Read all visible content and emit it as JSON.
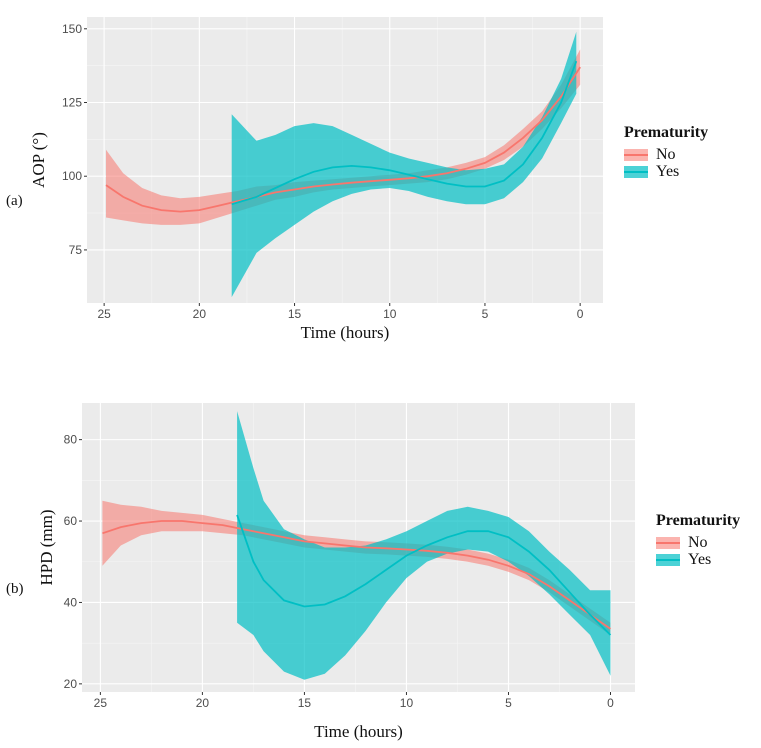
{
  "chart_data": [
    {
      "type": "line",
      "panel_label": "(a)",
      "title": "",
      "xlabel": "Time (hours)",
      "ylabel": "AOP (°)",
      "xlim": [
        25.9,
        -1.2
      ],
      "ylim": [
        57,
        154
      ],
      "x_ticks": [
        25,
        20,
        15,
        10,
        5,
        0
      ],
      "y_ticks": [
        75,
        100,
        125,
        150
      ],
      "grid": true,
      "legend": {
        "title": "Prematurity",
        "entries": [
          "No",
          "Yes"
        ],
        "position": "right"
      },
      "series": [
        {
          "name": "No",
          "color": "#F8766D",
          "x": [
            24.9,
            24,
            23,
            22,
            21,
            20,
            19,
            18,
            17,
            16,
            15,
            14,
            13,
            12,
            11,
            10,
            9,
            8,
            7,
            6,
            5,
            4,
            3,
            2,
            1,
            0
          ],
          "y": [
            97,
            93,
            90,
            88.5,
            88,
            88.5,
            90,
            91.5,
            93,
            94.5,
            95.5,
            96.5,
            97.2,
            97.8,
            98.3,
            98.8,
            99.3,
            100,
            101,
            102.5,
            104.5,
            108,
            113,
            119,
            127,
            137
          ],
          "lower": [
            86,
            85,
            84,
            83.5,
            83.5,
            84,
            86,
            88,
            90,
            92,
            93,
            94.5,
            95.5,
            96,
            96.5,
            97,
            97.5,
            98,
            99,
            100.5,
            102.5,
            105.5,
            110,
            116,
            123,
            131
          ],
          "upper": [
            109,
            101,
            96,
            93.5,
            92.5,
            93,
            94,
            95,
            96.5,
            97,
            98,
            98.5,
            99,
            99.5,
            100,
            100.5,
            101,
            102,
            103,
            104.5,
            106.5,
            110.5,
            116,
            122,
            131,
            143
          ]
        },
        {
          "name": "Yes",
          "color": "#00BFC4",
          "x": [
            18.3,
            17,
            16,
            15,
            14,
            13,
            12,
            11,
            10,
            9,
            8,
            7,
            6,
            5,
            4,
            3,
            2,
            1,
            0.2
          ],
          "y": [
            90.5,
            93,
            96,
            99,
            101.5,
            103,
            103.5,
            103,
            102,
            100.5,
            99,
            97.5,
            96.5,
            96.5,
            98.5,
            104,
            113,
            125,
            139
          ],
          "lower": [
            59,
            74,
            79,
            83.5,
            88,
            91.5,
            94,
            95.5,
            96,
            95,
            93,
            91.5,
            90.5,
            90.5,
            92.5,
            98,
            106,
            118,
            128
          ],
          "upper": [
            121,
            112,
            114,
            117,
            118,
            117,
            114,
            111,
            108,
            106,
            104.5,
            103,
            102,
            102.5,
            104,
            110,
            120,
            133,
            149
          ]
        }
      ]
    },
    {
      "type": "line",
      "panel_label": "(b)",
      "title": "",
      "xlabel": "Time (hours)",
      "ylabel": "HPD (mm)",
      "xlim": [
        25.9,
        -1.2
      ],
      "ylim": [
        18,
        89
      ],
      "x_ticks": [
        25,
        20,
        15,
        10,
        5,
        0
      ],
      "y_ticks": [
        20,
        40,
        60,
        80
      ],
      "grid": true,
      "legend": {
        "title": "Prematurity",
        "entries": [
          "No",
          "Yes"
        ],
        "position": "right"
      },
      "series": [
        {
          "name": "No",
          "color": "#F8766D",
          "x": [
            24.9,
            24,
            23,
            22,
            21,
            20,
            19,
            18,
            17,
            16,
            15,
            14,
            13,
            12,
            11,
            10,
            9,
            8,
            7,
            6,
            5,
            4,
            3,
            2,
            1,
            0
          ],
          "y": [
            57,
            58.5,
            59.5,
            60,
            60,
            59.5,
            59,
            58,
            57,
            56,
            55,
            54.5,
            54,
            53.5,
            53.3,
            53,
            52.7,
            52.2,
            51.5,
            50.5,
            49,
            47,
            44,
            40.5,
            37,
            33.5
          ],
          "lower": [
            49,
            54,
            56.5,
            57.5,
            57.5,
            57.5,
            57,
            56.5,
            55.5,
            54.5,
            53.5,
            53,
            52.5,
            52,
            51.8,
            51.5,
            51.2,
            50.7,
            50,
            49,
            47.5,
            45.5,
            42.5,
            39,
            35.5,
            32
          ],
          "upper": [
            65,
            64,
            63.5,
            62.5,
            62,
            61.5,
            60.5,
            59.5,
            58.5,
            57.5,
            56.5,
            56,
            55.5,
            55,
            54.8,
            54.5,
            54.2,
            53.7,
            53,
            52,
            50.5,
            48.5,
            45.5,
            42,
            38.5,
            35
          ]
        },
        {
          "name": "Yes",
          "color": "#00BFC4",
          "x": [
            18.3,
            17.5,
            17,
            16,
            15,
            14,
            13,
            12,
            11,
            10,
            9,
            8,
            7,
            6,
            5,
            4,
            3,
            2,
            1,
            0
          ],
          "y": [
            61.5,
            50,
            45.5,
            40.5,
            39,
            39.5,
            41.5,
            44.5,
            48,
            51.5,
            54,
            56,
            57.5,
            57.5,
            56,
            52.5,
            48,
            42.5,
            37,
            32
          ],
          "lower": [
            35,
            32,
            28,
            23,
            21,
            22.5,
            27,
            33,
            40,
            46,
            50,
            52,
            53,
            52.5,
            50,
            46.5,
            42,
            37,
            32,
            22
          ],
          "upper": [
            87,
            73,
            65,
            58,
            55.5,
            53.5,
            53.5,
            54,
            55.5,
            57.5,
            60,
            62.5,
            63.5,
            62.5,
            61,
            57.5,
            52.5,
            48,
            43,
            43
          ]
        }
      ]
    }
  ]
}
